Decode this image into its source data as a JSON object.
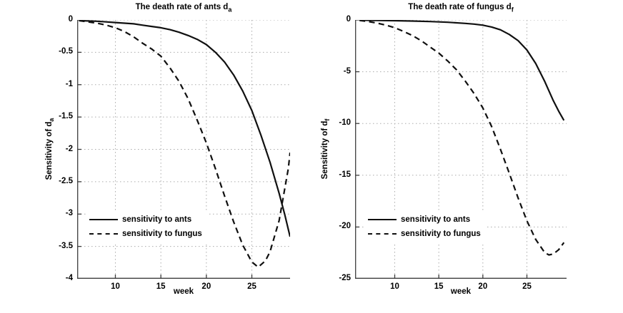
{
  "figure": {
    "background": "#ffffff",
    "grid_color": "#ababab",
    "axis_color": "#3d3d3d",
    "curve_color": "#101010",
    "grid_style": "dotted",
    "legend_labels": [
      "sensitivity to ants",
      "sensitivity to fungus"
    ]
  },
  "chart_data": [
    {
      "type": "line",
      "title_main": "The death rate of ants d",
      "title_sub": "a",
      "ylabel_main": "Sensitivity of d",
      "ylabel_sub": "a",
      "xlabel": "week",
      "xlim": [
        5.8,
        29.2
      ],
      "ylim": [
        -4,
        0
      ],
      "xticks": [
        10,
        15,
        20,
        25
      ],
      "xticklabels": [
        "10",
        "15",
        "20",
        "25"
      ],
      "yticks": [
        0,
        -0.5,
        -1,
        -1.5,
        -2,
        -2.5,
        -3,
        -3.5,
        -4
      ],
      "yticklabels": [
        "0",
        "-0.5",
        "-1",
        "-1.5",
        "-2",
        "-2.5",
        "-3",
        "-3.5",
        "-4"
      ],
      "grid": true,
      "legend_position": "lower-left-inside",
      "series": [
        {
          "name": "sensitivity to ants",
          "style": "solid",
          "x": [
            6,
            7,
            8,
            9,
            10,
            11,
            12,
            13,
            14,
            15,
            16,
            17,
            18,
            19,
            20,
            21,
            22,
            23,
            24,
            25,
            26,
            27,
            28,
            28.6,
            29.2
          ],
          "y": [
            -0.01,
            -0.015,
            -0.02,
            -0.03,
            -0.04,
            -0.05,
            -0.06,
            -0.08,
            -0.1,
            -0.12,
            -0.15,
            -0.19,
            -0.24,
            -0.3,
            -0.38,
            -0.5,
            -0.65,
            -0.85,
            -1.1,
            -1.4,
            -1.78,
            -2.2,
            -2.68,
            -3.0,
            -3.35
          ]
        },
        {
          "name": "sensitivity to fungus",
          "style": "dashed",
          "x": [
            6,
            7,
            8,
            9,
            10,
            11,
            12,
            13,
            14,
            15,
            16,
            17,
            18,
            19,
            20,
            21,
            22,
            23,
            24,
            25,
            25.7,
            26.5,
            27,
            28,
            29,
            29.2
          ],
          "y": [
            -0.01,
            -0.03,
            -0.05,
            -0.08,
            -0.12,
            -0.18,
            -0.26,
            -0.36,
            -0.45,
            -0.56,
            -0.74,
            -0.95,
            -1.22,
            -1.55,
            -1.9,
            -2.3,
            -2.72,
            -3.12,
            -3.48,
            -3.74,
            -3.82,
            -3.72,
            -3.58,
            -3.1,
            -2.3,
            -2.05
          ]
        }
      ]
    },
    {
      "type": "line",
      "title_main": "The death rate of fungus d",
      "title_sub": "f",
      "ylabel_main": "Sensitivity of d",
      "ylabel_sub": "f",
      "xlabel": "week",
      "xlim": [
        5.5,
        29.5
      ],
      "ylim": [
        -25,
        0
      ],
      "xticks": [
        10,
        15,
        20,
        25
      ],
      "xticklabels": [
        "10",
        "15",
        "20",
        "25"
      ],
      "yticks": [
        0,
        -5,
        -10,
        -15,
        -20,
        -25
      ],
      "yticklabels": [
        "0",
        "-5",
        "-10",
        "-15",
        "-20",
        "-25"
      ],
      "grid": true,
      "legend_position": "lower-left-inside",
      "series": [
        {
          "name": "sensitivity to ants",
          "style": "solid",
          "x": [
            6,
            8,
            10,
            12,
            14,
            16,
            18,
            19,
            20,
            21,
            22,
            23,
            24,
            25,
            26,
            27,
            28,
            28.6,
            29.2
          ],
          "y": [
            -0.02,
            -0.04,
            -0.07,
            -0.1,
            -0.15,
            -0.22,
            -0.33,
            -0.4,
            -0.5,
            -0.68,
            -0.95,
            -1.4,
            -2.0,
            -2.9,
            -4.2,
            -5.9,
            -7.8,
            -8.8,
            -9.7
          ]
        },
        {
          "name": "sensitivity to fungus",
          "style": "dashed",
          "x": [
            6,
            7,
            8,
            9,
            10,
            11,
            12,
            13,
            14,
            15,
            16,
            17,
            18,
            19,
            20,
            21,
            22,
            23,
            24,
            25,
            26,
            27,
            27.5,
            28,
            28.6,
            29.2
          ],
          "y": [
            -0.05,
            -0.15,
            -0.3,
            -0.5,
            -0.75,
            -1.1,
            -1.5,
            -2.0,
            -2.6,
            -3.2,
            -3.95,
            -4.8,
            -5.9,
            -7.1,
            -8.5,
            -10.3,
            -12.5,
            -14.8,
            -17.2,
            -19.4,
            -21.2,
            -22.45,
            -22.7,
            -22.6,
            -22.2,
            -21.5
          ]
        }
      ]
    }
  ]
}
